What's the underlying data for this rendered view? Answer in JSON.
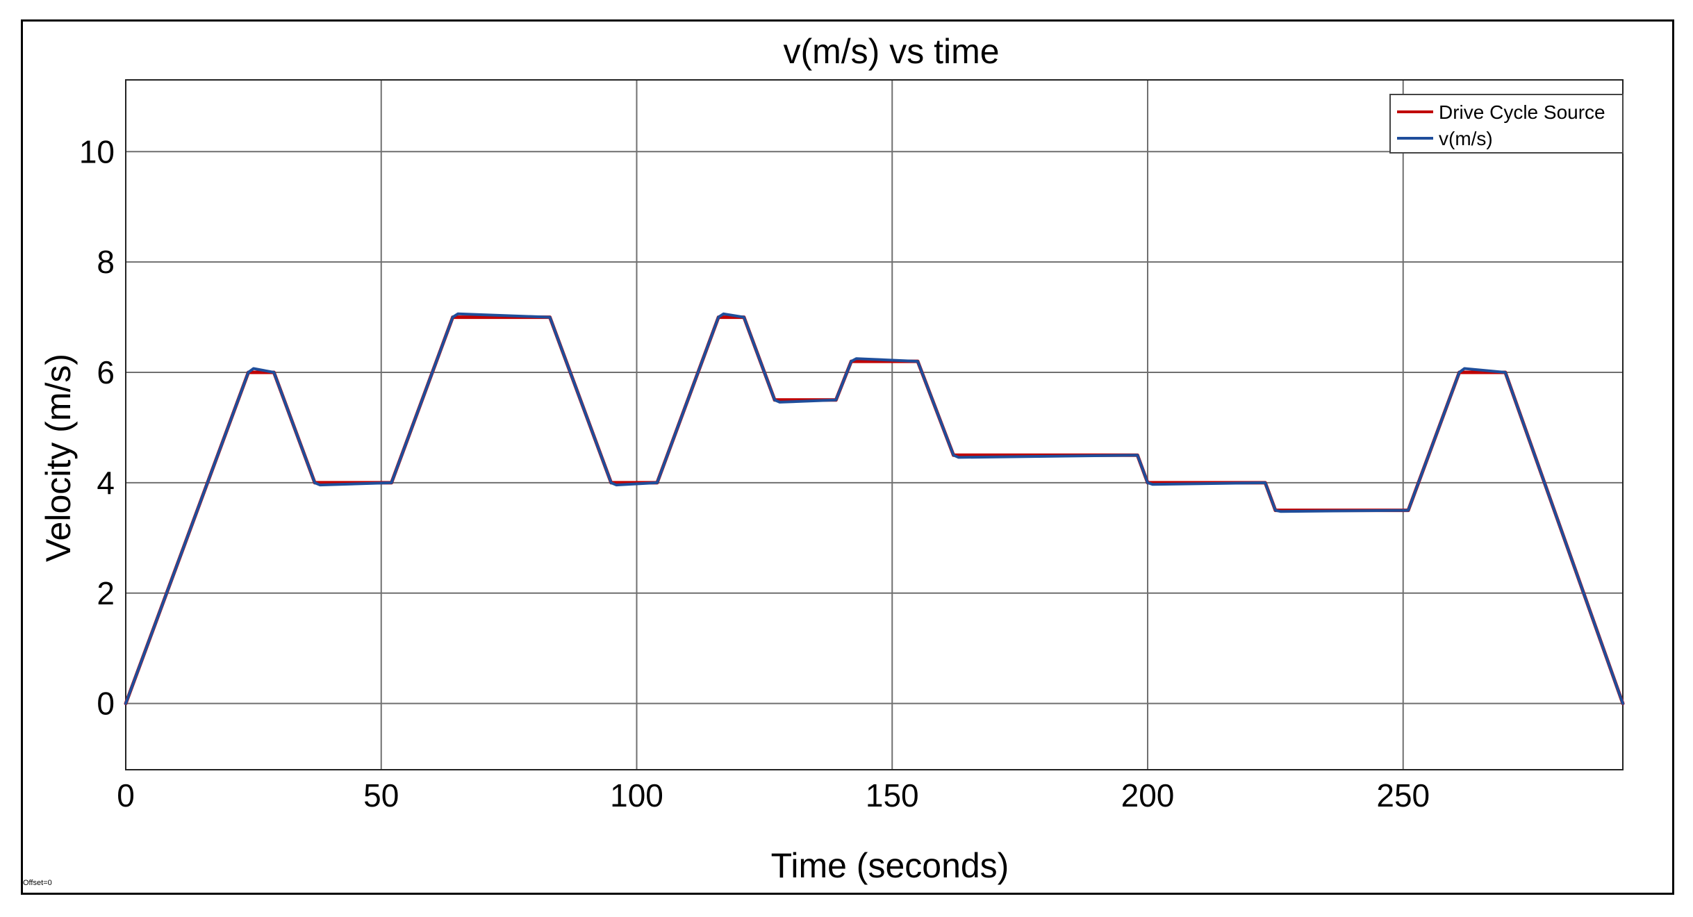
{
  "chart_data": {
    "type": "line",
    "title": "v(m/s) vs time",
    "xlabel": "Time (seconds)",
    "ylabel": "Velocity (m/s)",
    "xlim": [
      0,
      293
    ],
    "ylim": [
      -1.2,
      11.3
    ],
    "xticks": [
      0,
      50,
      100,
      150,
      200,
      250
    ],
    "yticks": [
      0,
      2,
      4,
      6,
      8,
      10
    ],
    "grid": true,
    "legend_position": "top-right",
    "footnote": "Offset=0",
    "series": [
      {
        "name": "Drive Cycle Source",
        "color": "#c00000",
        "x": [
          0,
          24,
          29,
          37,
          52,
          64,
          83,
          95,
          104,
          116,
          121,
          127,
          139,
          142,
          155,
          162,
          198,
          200,
          223,
          225,
          251,
          261,
          270,
          293
        ],
        "y": [
          0,
          6,
          6,
          4,
          4,
          7,
          7,
          4,
          4,
          7,
          7,
          5.5,
          5.5,
          6.2,
          6.2,
          4.5,
          4.5,
          4,
          4,
          3.5,
          3.5,
          6,
          6,
          0
        ]
      },
      {
        "name": "v(m/s)",
        "color": "#1f4e9b",
        "x": [
          0,
          24,
          25,
          29,
          37,
          38,
          52,
          64,
          65,
          83,
          95,
          96,
          104,
          116,
          117,
          121,
          127,
          128,
          139,
          142,
          143,
          155,
          162,
          163,
          198,
          200,
          201,
          223,
          225,
          226,
          251,
          261,
          262,
          270,
          293
        ],
        "y": [
          0,
          6,
          6.07,
          6,
          4,
          3.96,
          4,
          7,
          7.06,
          7,
          4,
          3.96,
          4,
          7,
          7.06,
          7,
          5.5,
          5.46,
          5.5,
          6.2,
          6.25,
          6.2,
          4.5,
          4.46,
          4.5,
          4,
          3.97,
          4,
          3.5,
          3.48,
          3.5,
          6,
          6.07,
          6,
          0
        ]
      }
    ]
  }
}
